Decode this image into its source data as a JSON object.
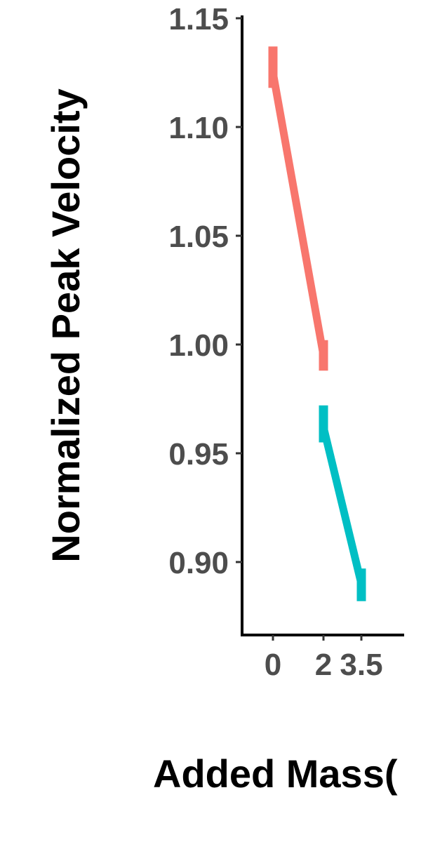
{
  "chart_data": {
    "type": "line",
    "xlabel": "Added Mass(",
    "ylabel": "Normalized Peak Velocity",
    "x_ticks": [
      "0",
      "2",
      "3.5"
    ],
    "y_ticks": [
      "1.15",
      "1.10",
      "1.05",
      "1.00",
      "0.95",
      "0.90"
    ],
    "ylim": [
      0.865,
      1.15
    ],
    "grid": false,
    "series": [
      {
        "color": "#F8766D",
        "points": [
          {
            "x": 0,
            "y": 1.125,
            "err_low": 1.118,
            "err_high": 1.137
          },
          {
            "x": 2,
            "y": 0.995,
            "err_low": 0.988,
            "err_high": 1.002
          }
        ]
      },
      {
        "color": "#00BFC4",
        "points": [
          {
            "x": 2,
            "y": 0.962,
            "err_low": 0.955,
            "err_high": 0.972
          },
          {
            "x": 3.5,
            "y": 0.89,
            "err_low": 0.882,
            "err_high": 0.897
          }
        ]
      }
    ]
  }
}
